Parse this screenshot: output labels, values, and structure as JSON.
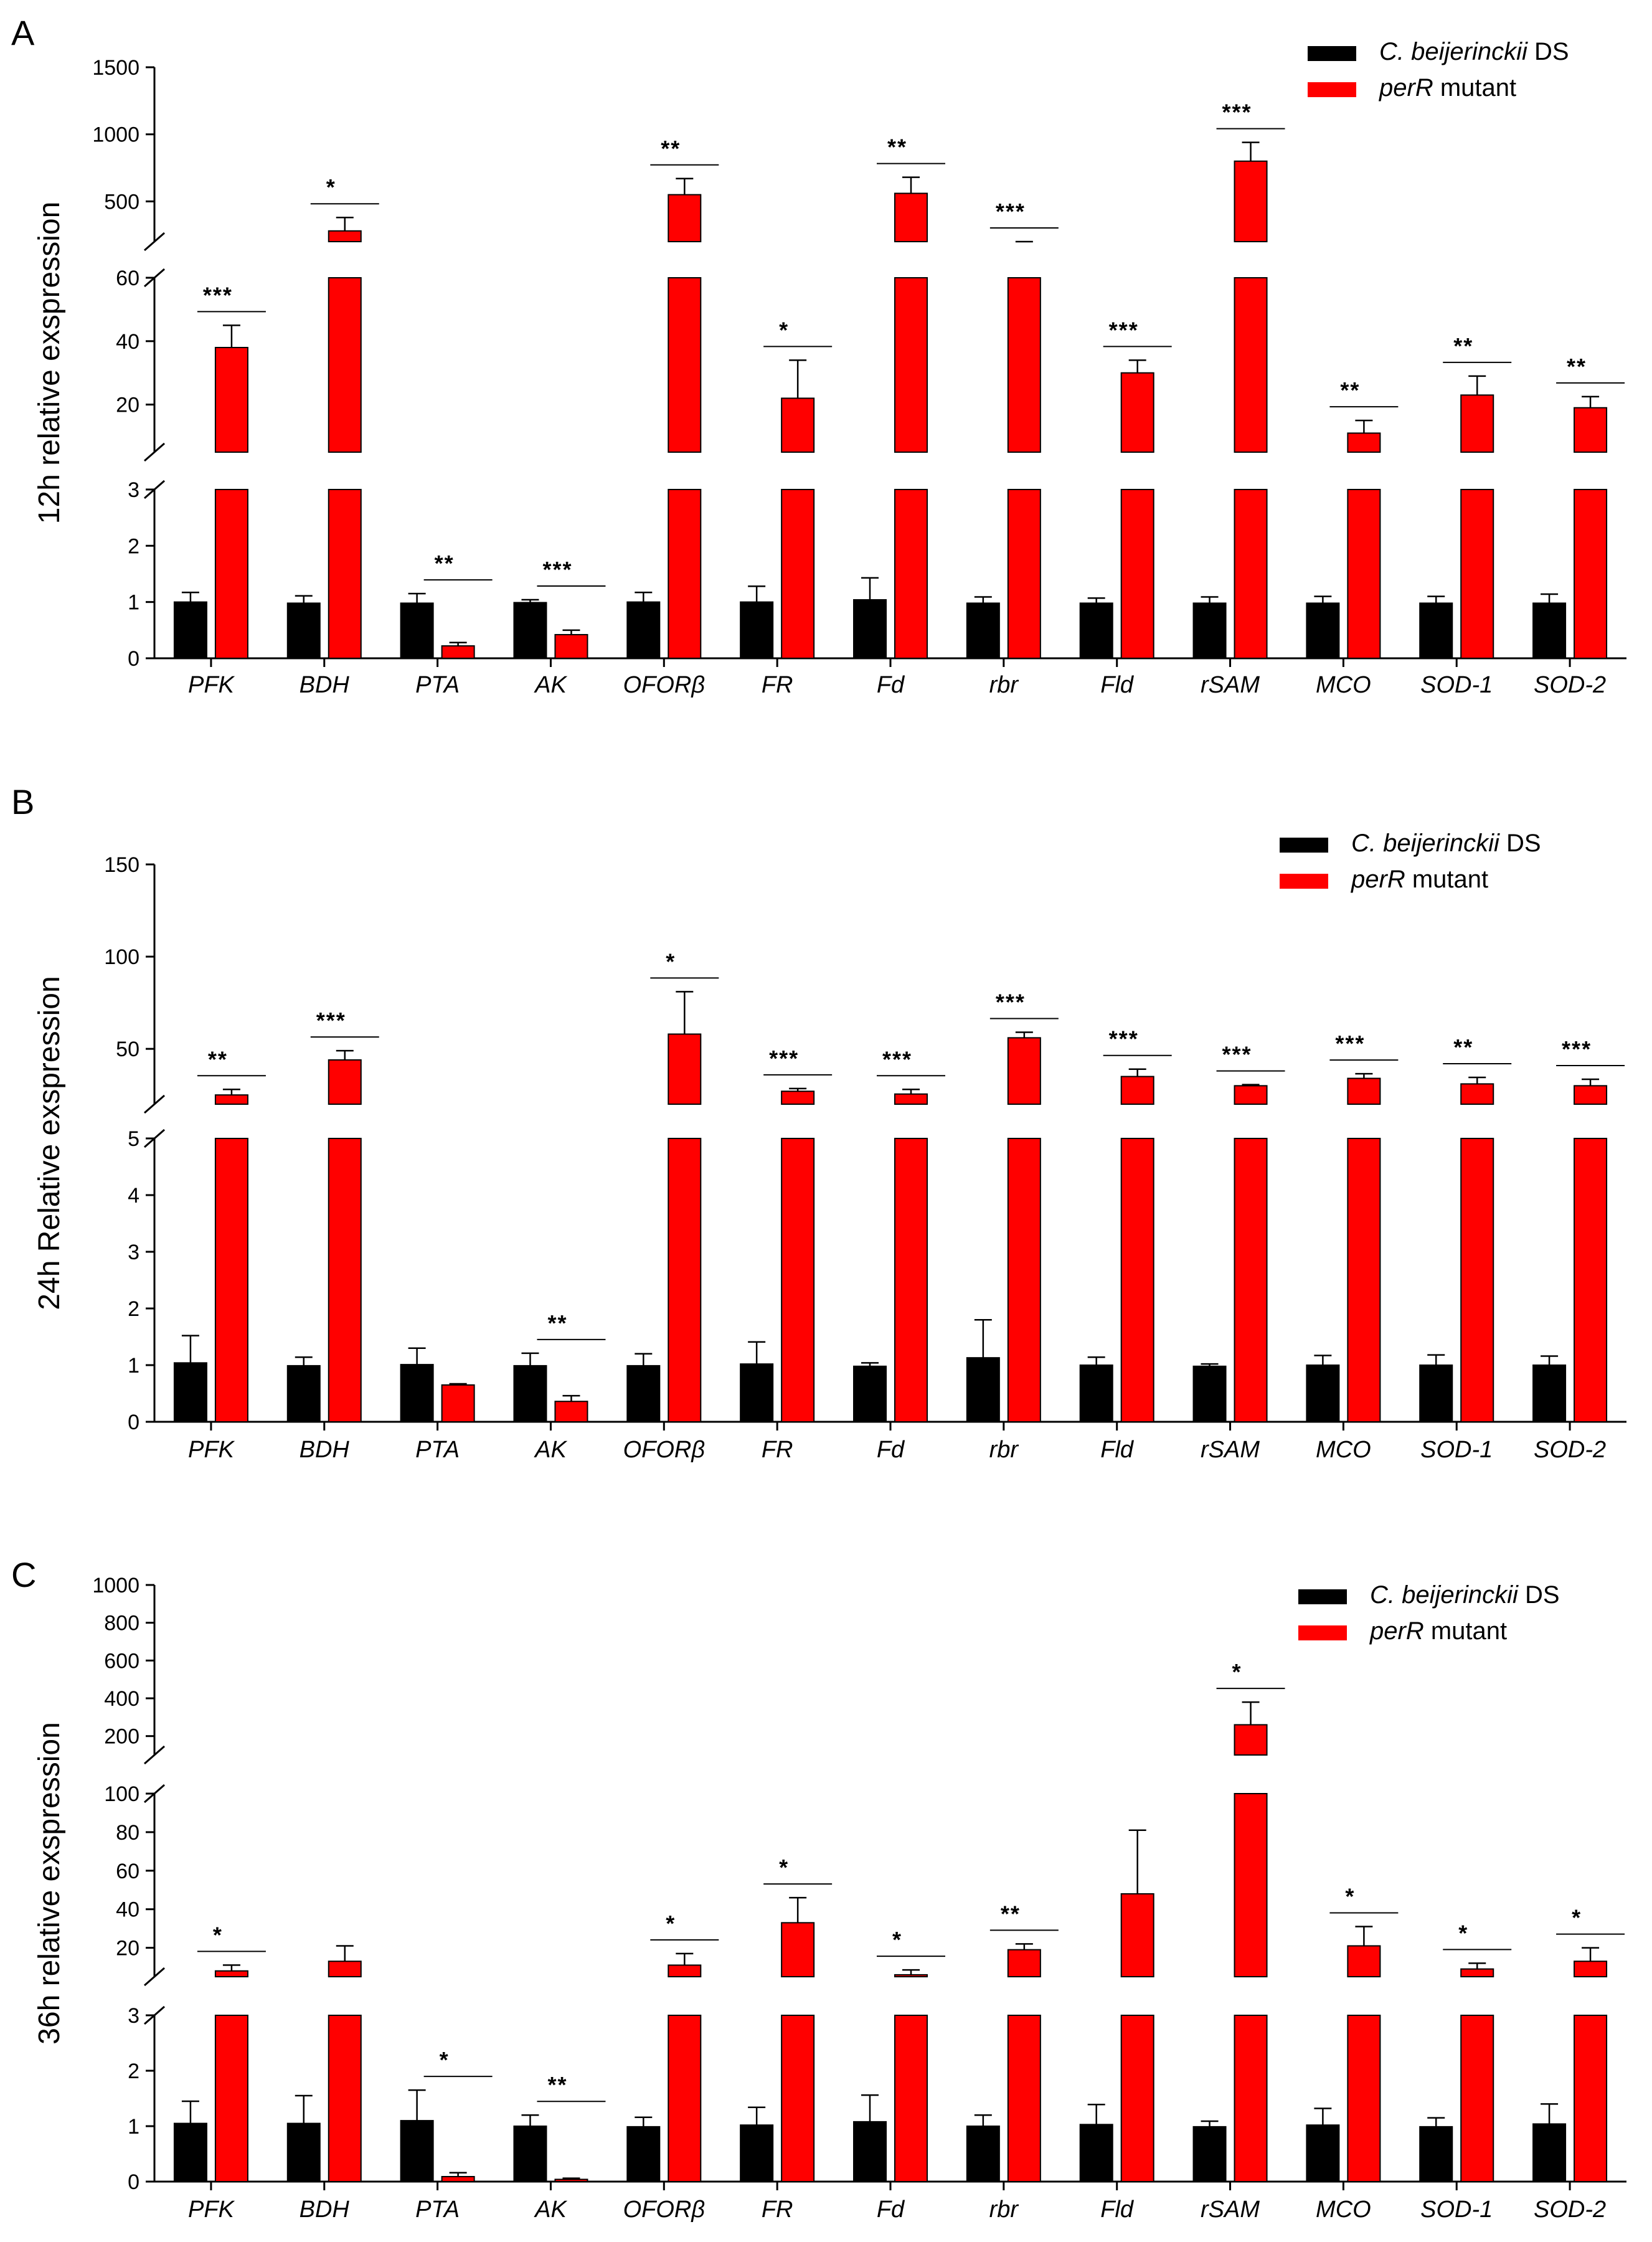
{
  "colors": {
    "ds": "#000000",
    "mutant": "#ff0000"
  },
  "chart_data": [
    {
      "type": "bar",
      "panel_letter": "A",
      "ylabel": "12h relative exspression",
      "legend": {
        "placement": "top-right",
        "entries": [
          {
            "name_italic": "C. beijerinckii",
            "name_plain": " DS",
            "color": "#000000"
          },
          {
            "name_italic": "perR",
            "name_plain": " mutant",
            "color": "#ff0000",
            "italic_first": true
          }
        ]
      },
      "categories": [
        "PFK",
        "BDH",
        "PTA",
        "AK",
        "OFORβ",
        "FR",
        "Fd",
        "rbr",
        "Fld",
        "rSAM",
        "MCO",
        "SOD-1",
        "SOD-2"
      ],
      "segments": [
        {
          "range": [
            0,
            3
          ],
          "ticks": [
            0,
            1,
            2,
            3
          ]
        },
        {
          "range": [
            5,
            60
          ],
          "ticks": [
            20,
            40,
            60
          ]
        },
        {
          "range": [
            200,
            1500
          ],
          "ticks": [
            500,
            1000,
            1500
          ]
        }
      ],
      "series": [
        {
          "name": "C. beijerinckii DS",
          "color": "#000000",
          "values": [
            1.0,
            0.98,
            0.98,
            0.99,
            1.0,
            1.0,
            1.04,
            0.98,
            0.98,
            0.98,
            0.98,
            0.98,
            0.98
          ],
          "errors": [
            0.17,
            0.13,
            0.17,
            0.05,
            0.17,
            0.28,
            0.39,
            0.11,
            0.09,
            0.11,
            0.12,
            0.12,
            0.16
          ]
        },
        {
          "name": "perR mutant",
          "color": "#ff0000",
          "values": [
            38,
            280,
            0.22,
            0.42,
            550,
            22,
            560,
            160,
            30,
            800,
            11,
            23,
            19
          ],
          "errors": [
            7,
            100,
            0.06,
            0.08,
            120,
            12,
            120,
            20,
            4,
            140,
            4,
            6,
            3.5
          ]
        }
      ],
      "significance": [
        "***",
        "*",
        "**",
        "***",
        "**",
        "*",
        "**",
        "***",
        "***",
        "***",
        "**",
        "**",
        "**"
      ]
    },
    {
      "type": "bar",
      "panel_letter": "B",
      "ylabel": "24h Relative exspression",
      "legend": {
        "placement": "top-right",
        "entries": [
          {
            "name_italic": "C. beijerinckii",
            "name_plain": " DS",
            "color": "#000000"
          },
          {
            "name_italic": "perR",
            "name_plain": " mutant",
            "color": "#ff0000",
            "italic_first": true
          }
        ]
      },
      "categories": [
        "PFK",
        "BDH",
        "PTA",
        "AK",
        "OFORβ",
        "FR",
        "Fd",
        "rbr",
        "Fld",
        "rSAM",
        "MCO",
        "SOD-1",
        "SOD-2"
      ],
      "segments": [
        {
          "range": [
            0,
            5
          ],
          "ticks": [
            0,
            1,
            2,
            3,
            4,
            5
          ]
        },
        {
          "range": [
            20,
            150
          ],
          "ticks": [
            50,
            100,
            150
          ]
        }
      ],
      "series": [
        {
          "name": "C. beijerinckii DS",
          "color": "#000000",
          "values": [
            1.04,
            0.99,
            1.01,
            0.99,
            0.99,
            1.02,
            0.98,
            1.13,
            1.0,
            0.98,
            1.0,
            1.0,
            1.0
          ],
          "errors": [
            0.48,
            0.15,
            0.29,
            0.22,
            0.21,
            0.39,
            0.06,
            0.67,
            0.14,
            0.04,
            0.17,
            0.18,
            0.16
          ]
        },
        {
          "name": "perR mutant",
          "color": "#ff0000",
          "values": [
            25,
            44,
            0.65,
            0.36,
            58,
            27,
            25.5,
            56,
            35,
            30,
            34,
            31,
            30
          ],
          "errors": [
            3,
            5,
            0.02,
            0.1,
            23,
            1.5,
            2.5,
            3,
            4,
            0.6,
            2.5,
            3.5,
            3.5
          ]
        }
      ],
      "significance": [
        "**",
        "***",
        "",
        "**",
        "*",
        "***",
        "***",
        "***",
        "***",
        "***",
        "***",
        "**",
        "***"
      ]
    },
    {
      "type": "bar",
      "panel_letter": "C",
      "ylabel": "36h relative exspression",
      "legend": {
        "placement": "top-right",
        "entries": [
          {
            "name_italic": "C. beijerinckii",
            "name_plain": " DS",
            "color": "#000000"
          },
          {
            "name_italic": "perR",
            "name_plain": " mutant",
            "color": "#ff0000",
            "italic_first": true
          }
        ]
      },
      "categories": [
        "PFK",
        "BDH",
        "PTA",
        "AK",
        "OFORβ",
        "FR",
        "Fd",
        "rbr",
        "Fld",
        "rSAM",
        "MCO",
        "SOD-1",
        "SOD-2"
      ],
      "segments": [
        {
          "range": [
            0,
            3
          ],
          "ticks": [
            0,
            1,
            2,
            3
          ]
        },
        {
          "range": [
            5,
            100
          ],
          "ticks": [
            20,
            40,
            60,
            80,
            100
          ]
        },
        {
          "range": [
            100,
            1000
          ],
          "ticks": [
            200,
            400,
            600,
            800,
            1000
          ]
        }
      ],
      "series": [
        {
          "name": "C. beijerinckii DS",
          "color": "#000000",
          "values": [
            1.05,
            1.05,
            1.1,
            1.0,
            0.99,
            1.02,
            1.08,
            1.0,
            1.03,
            0.99,
            1.02,
            0.99,
            1.04
          ],
          "errors": [
            0.4,
            0.5,
            0.55,
            0.2,
            0.17,
            0.32,
            0.48,
            0.2,
            0.36,
            0.1,
            0.3,
            0.16,
            0.36
          ]
        },
        {
          "name": "perR mutant",
          "color": "#ff0000",
          "values": [
            8,
            13,
            0.09,
            0.04,
            11,
            33,
            6,
            19,
            48,
            260,
            21,
            9,
            13
          ],
          "errors": [
            3,
            8,
            0.07,
            0.02,
            6,
            13,
            2.5,
            3,
            33,
            120,
            10,
            3,
            7
          ]
        }
      ],
      "significance": [
        "*",
        "",
        "*",
        "**",
        "*",
        "*",
        "*",
        "**",
        "",
        "*",
        "*",
        "*",
        "*"
      ]
    }
  ]
}
